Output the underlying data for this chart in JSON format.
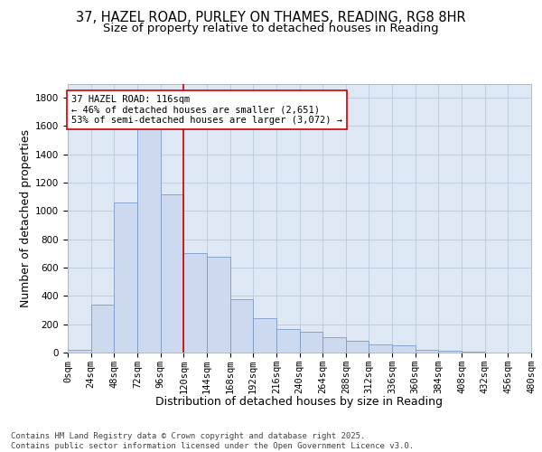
{
  "title_line1": "37, HAZEL ROAD, PURLEY ON THAMES, READING, RG8 8HR",
  "title_line2": "Size of property relative to detached houses in Reading",
  "xlabel": "Distribution of detached houses by size in Reading",
  "ylabel": "Number of detached properties",
  "bar_color": "#ccd9ee",
  "bar_edgecolor": "#7a9cc8",
  "grid_color": "#b8c8dc",
  "background_color": "#dde8f4",
  "vline_x": 120,
  "vline_color": "#cc0000",
  "annotation_text": "37 HAZEL ROAD: 116sqm\n← 46% of detached houses are smaller (2,651)\n53% of semi-detached houses are larger (3,072) →",
  "annotation_box_color": "#cc0000",
  "bin_edges": [
    0,
    24,
    48,
    72,
    96,
    120,
    144,
    168,
    192,
    216,
    240,
    264,
    288,
    312,
    336,
    360,
    384,
    408,
    432,
    456,
    480
  ],
  "bar_heights": [
    20,
    340,
    1060,
    1740,
    1120,
    700,
    680,
    380,
    240,
    165,
    145,
    110,
    80,
    60,
    50,
    18,
    10,
    5,
    2,
    0
  ],
  "ylim": [
    0,
    1900
  ],
  "yticks": [
    0,
    200,
    400,
    600,
    800,
    1000,
    1200,
    1400,
    1600,
    1800
  ],
  "footnote": "Contains HM Land Registry data © Crown copyright and database right 2025.\nContains public sector information licensed under the Open Government Licence v3.0.",
  "title_fontsize": 10.5,
  "subtitle_fontsize": 9.5,
  "axis_label_fontsize": 9,
  "tick_fontsize": 7.5,
  "annotation_fontsize": 7.5,
  "footnote_fontsize": 6.5
}
